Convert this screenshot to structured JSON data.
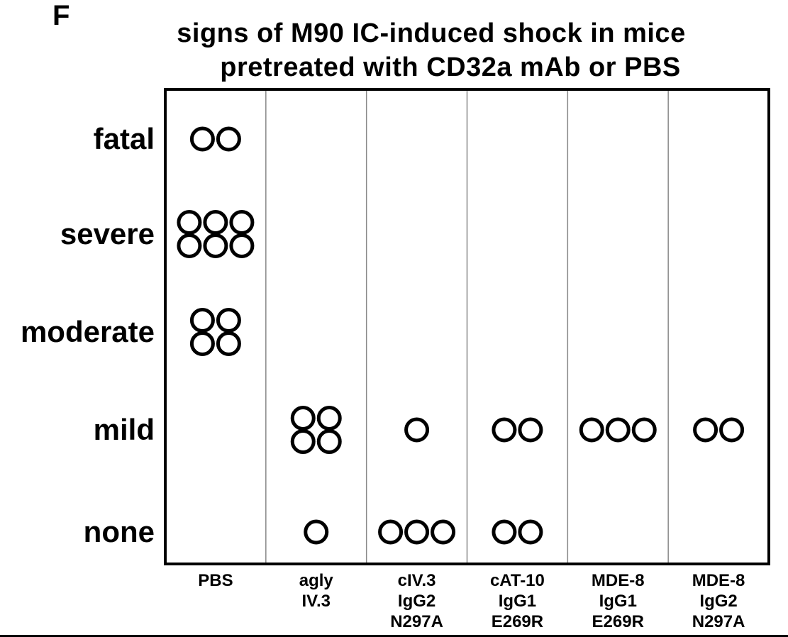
{
  "panel_label": "F",
  "title_lines": [
    "signs of M90 IC-induced shock in mice",
    "pretreated with CD32a mAb or PBS"
  ],
  "chart_data": {
    "type": "scatter",
    "title": "signs of M90 IC-induced shock in mice pretreated with CD32a mAb or PBS",
    "y_categories": [
      "fatal",
      "severe",
      "moderate",
      "mild",
      "none"
    ],
    "groups": [
      {
        "label_lines": [
          "PBS"
        ],
        "counts": {
          "fatal": 2,
          "severe": 6,
          "moderate": 4,
          "mild": 0,
          "none": 0
        }
      },
      {
        "label_lines": [
          "agly",
          "IV.3"
        ],
        "counts": {
          "fatal": 0,
          "severe": 0,
          "moderate": 0,
          "mild": 4,
          "none": 1
        }
      },
      {
        "label_lines": [
          "cIV.3",
          "IgG2",
          "N297A"
        ],
        "counts": {
          "fatal": 0,
          "severe": 0,
          "moderate": 0,
          "mild": 1,
          "none": 3
        }
      },
      {
        "label_lines": [
          "cAT-10",
          "IgG1",
          "E269R"
        ],
        "counts": {
          "fatal": 0,
          "severe": 0,
          "moderate": 0,
          "mild": 2,
          "none": 2
        }
      },
      {
        "label_lines": [
          "MDE-8",
          "IgG1",
          "E269R"
        ],
        "counts": {
          "fatal": 0,
          "severe": 0,
          "moderate": 0,
          "mild": 3,
          "none": 0
        }
      },
      {
        "label_lines": [
          "MDE-8",
          "IgG2",
          "N297A"
        ],
        "counts": {
          "fatal": 0,
          "severe": 0,
          "moderate": 0,
          "mild": 2,
          "none": 0
        }
      }
    ],
    "marker": "open-circle",
    "grid": false,
    "legend": "none"
  }
}
